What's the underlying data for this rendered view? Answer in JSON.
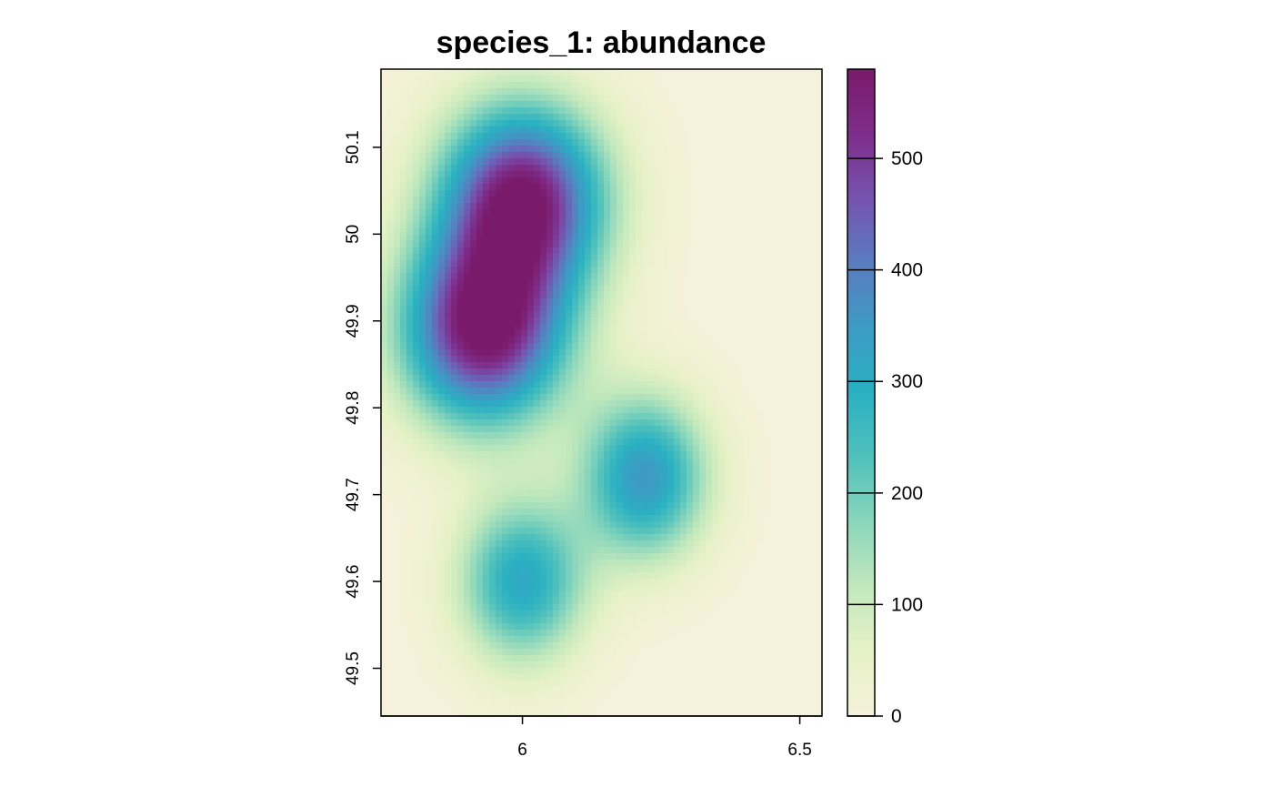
{
  "chart_data": {
    "type": "heatmap",
    "title": "species_1: abundance",
    "xlabel": "",
    "ylabel": "",
    "xlim": [
      5.745,
      6.54
    ],
    "ylim": [
      49.445,
      50.19
    ],
    "x_ticks": [
      6,
      6.5
    ],
    "x_tick_labels": [
      "6",
      "6.5"
    ],
    "y_ticks": [
      49.5,
      49.6,
      49.7,
      49.8,
      49.9,
      50.0,
      50.1
    ],
    "y_tick_labels": [
      "49.5",
      "49.6",
      "49.7",
      "49.8",
      "49.9",
      "50",
      "50.1"
    ],
    "grid": false,
    "legend": {
      "type": "colorbar",
      "placement": "right",
      "range": [
        0,
        580
      ],
      "ticks": [
        0,
        100,
        200,
        300,
        400,
        500
      ],
      "tick_labels": [
        "0",
        "100",
        "200",
        "300",
        "400",
        "500"
      ],
      "colors": [
        "#f5f2db",
        "#e6f1c6",
        "#c1e8bc",
        "#8ad6bc",
        "#50c1bc",
        "#2ab0c2",
        "#3d9bc4",
        "#5a7cc0",
        "#7553ae",
        "#7e2d8a",
        "#7a1a6a"
      ]
    },
    "background_value": 0,
    "hotspots": [
      {
        "x": 5.93,
        "y": 49.89,
        "peak": 580
      },
      {
        "x": 6.0,
        "y": 50.04,
        "peak": 570
      },
      {
        "x": 6.22,
        "y": 49.72,
        "peak": 350
      },
      {
        "x": 6.0,
        "y": 49.6,
        "peak": 310
      }
    ]
  }
}
